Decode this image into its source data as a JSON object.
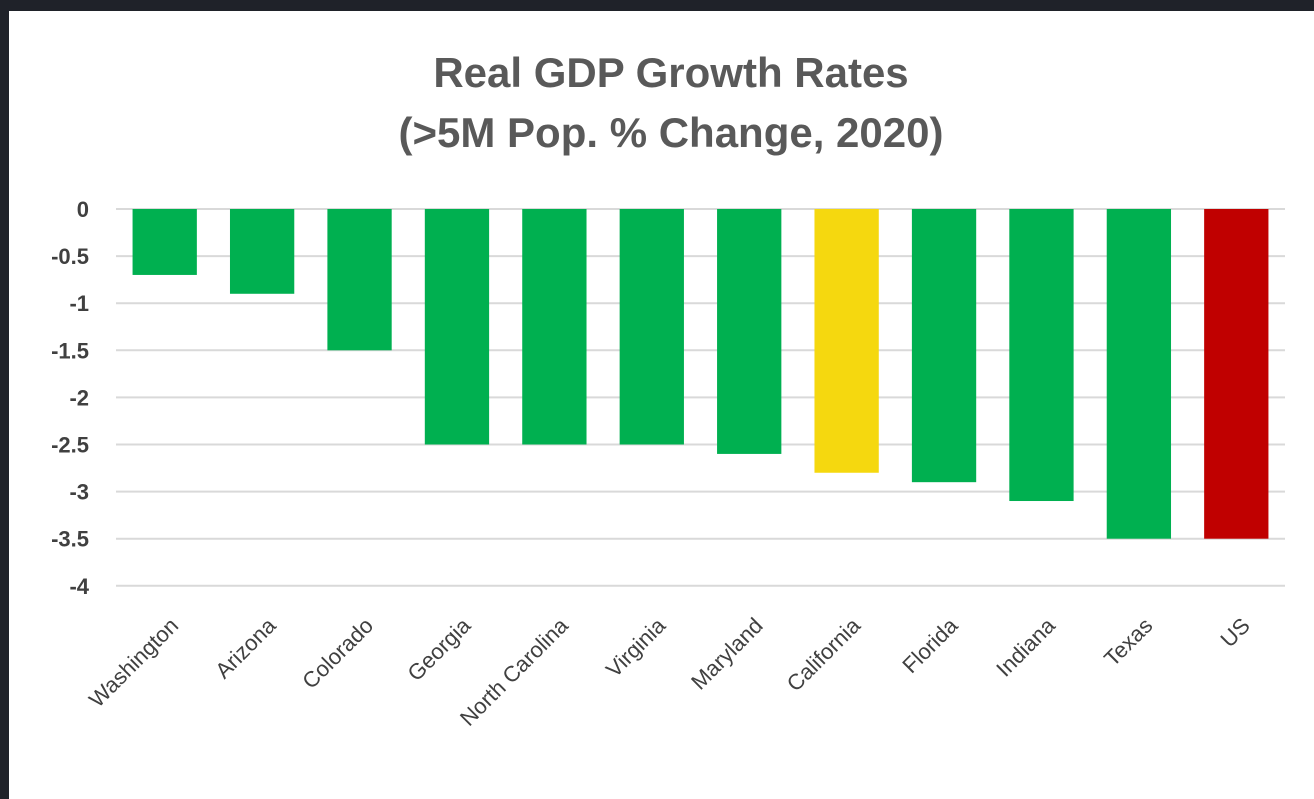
{
  "chart_data": {
    "type": "bar",
    "title": "Real GDP Growth Rates",
    "subtitle": "(>5M Pop. % Change, 2020)",
    "xlabel": "",
    "ylabel": "",
    "categories": [
      "Washington",
      "Arizona",
      "Colorado",
      "Georgia",
      "North Carolina",
      "Virginia",
      "Maryland",
      "California",
      "Florida",
      "Indiana",
      "Texas",
      "US"
    ],
    "values": [
      -0.7,
      -0.9,
      -1.5,
      -2.5,
      -2.5,
      -2.5,
      -2.6,
      -2.8,
      -2.9,
      -3.1,
      -3.5,
      -3.5
    ],
    "bar_colors": [
      "#00b050",
      "#00b050",
      "#00b050",
      "#00b050",
      "#00b050",
      "#00b050",
      "#00b050",
      "#f5d80f",
      "#00b050",
      "#00b050",
      "#00b050",
      "#c00000"
    ],
    "ylim": [
      -4,
      0
    ],
    "yticks": [
      "0",
      "-0.5",
      "-1",
      "-1.5",
      "-2",
      "-2.5",
      "-3",
      "-3.5",
      "-4"
    ],
    "grid": true,
    "legend": "none"
  }
}
